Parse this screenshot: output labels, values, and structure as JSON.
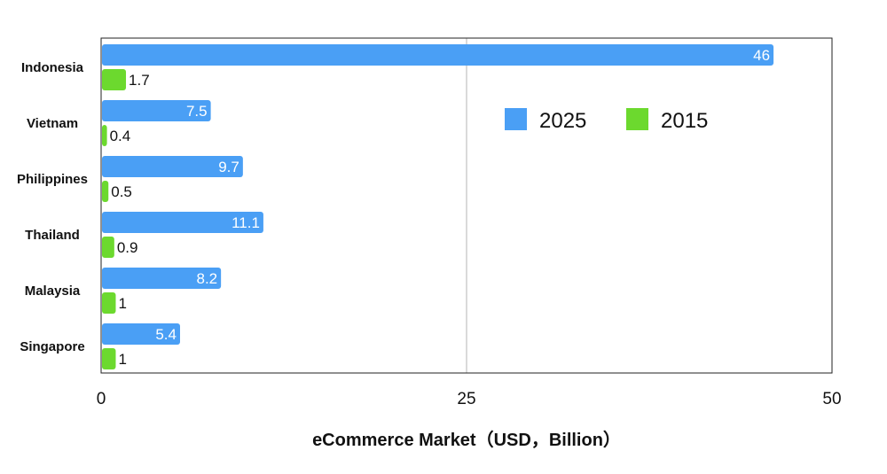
{
  "chart_data": {
    "type": "bar",
    "orientation": "horizontal",
    "categories": [
      "Indonesia",
      "Vietnam",
      "Philippines",
      "Thailand",
      "Malaysia",
      "Singapore"
    ],
    "series": [
      {
        "name": "2025",
        "color": "#4a9ff5",
        "values": [
          46,
          7.5,
          9.7,
          11.1,
          8.2,
          5.4
        ],
        "labels": [
          "46",
          "7.5",
          "9.7",
          "11.1",
          "8.2",
          "5.4"
        ]
      },
      {
        "name": "2015",
        "color": "#6cd92e",
        "values": [
          1.7,
          0.4,
          0.5,
          0.9,
          1,
          1
        ],
        "labels": [
          "1.7",
          "0.4",
          "0.5",
          "0.9",
          "1",
          "1"
        ]
      }
    ],
    "xlabel": "eCommerce Market（USD，Billion）",
    "xlim": [
      0,
      50
    ],
    "xticks": [
      "0",
      "25",
      "50"
    ],
    "grid": "vertical gridline at 25",
    "legend_position": "upper-right inside plot"
  }
}
